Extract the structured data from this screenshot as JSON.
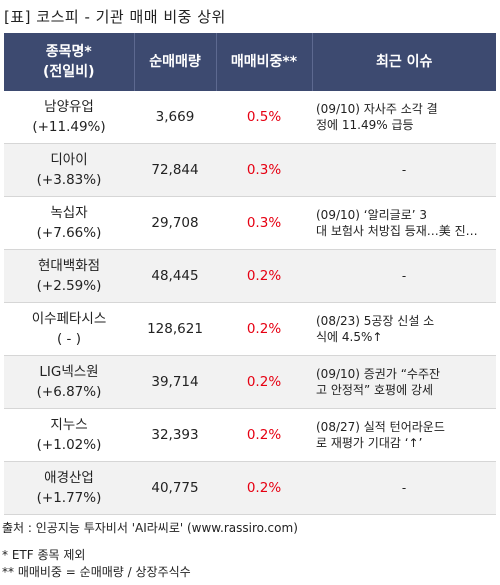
{
  "title": "[표] 코스피 - 기관 매매 비중 상위",
  "headers": {
    "name_line1": "종목명*",
    "name_line2": "(전일비)",
    "volume": "순매매량",
    "ratio": "매매비중**",
    "issue": "최근 이슈"
  },
  "rows": [
    {
      "name": "남양유업",
      "change": "(+11.49%)",
      "volume": "3,669",
      "ratio": "0.5%",
      "issue1": "(09/10) 자사주 소각 결",
      "issue2": "정에 11.49% 급등"
    },
    {
      "name": "디아이",
      "change": "(+3.83%)",
      "volume": "72,844",
      "ratio": "0.3%",
      "issue1": "-",
      "issue2": ""
    },
    {
      "name": "녹십자",
      "change": "(+7.66%)",
      "volume": "29,708",
      "ratio": "0.3%",
      "issue1": "(09/10) ‘알리글로’ 3",
      "issue2": "대 보험사 처방집 등재…美 진…"
    },
    {
      "name": "현대백화점",
      "change": "(+2.59%)",
      "volume": "48,445",
      "ratio": "0.2%",
      "issue1": "-",
      "issue2": ""
    },
    {
      "name": "이수페타시스",
      "change": "( - )",
      "volume": "128,621",
      "ratio": "0.2%",
      "issue1": "(08/23) 5공장 신설 소",
      "issue2": "식에 4.5%↑"
    },
    {
      "name": "LIG넥스원",
      "change": "(+6.87%)",
      "volume": "39,714",
      "ratio": "0.2%",
      "issue1": "(09/10) 증권가 “수주잔",
      "issue2": "고 안정적” 호평에 강세"
    },
    {
      "name": "지누스",
      "change": "(+1.02%)",
      "volume": "32,393",
      "ratio": "0.2%",
      "issue1": "(08/27) 실적 턴어라운드",
      "issue2": "로 재평가 기대감 ‘↑’"
    },
    {
      "name": "애경산업",
      "change": "(+1.77%)",
      "volume": "40,775",
      "ratio": "0.2%",
      "issue1": "-",
      "issue2": ""
    }
  ],
  "footer": {
    "source": "출처 : 인공지능 투자비서 'AI라씨로' (www.rassiro.com)",
    "note1": "* ETF 종목 제외",
    "note2": "** 매매비중 = 순매매량 / 상장주식수"
  },
  "colors": {
    "header_bg": "#3d4a70",
    "ratio_red": "#e60012",
    "row_shade": "#f2f2f2"
  }
}
